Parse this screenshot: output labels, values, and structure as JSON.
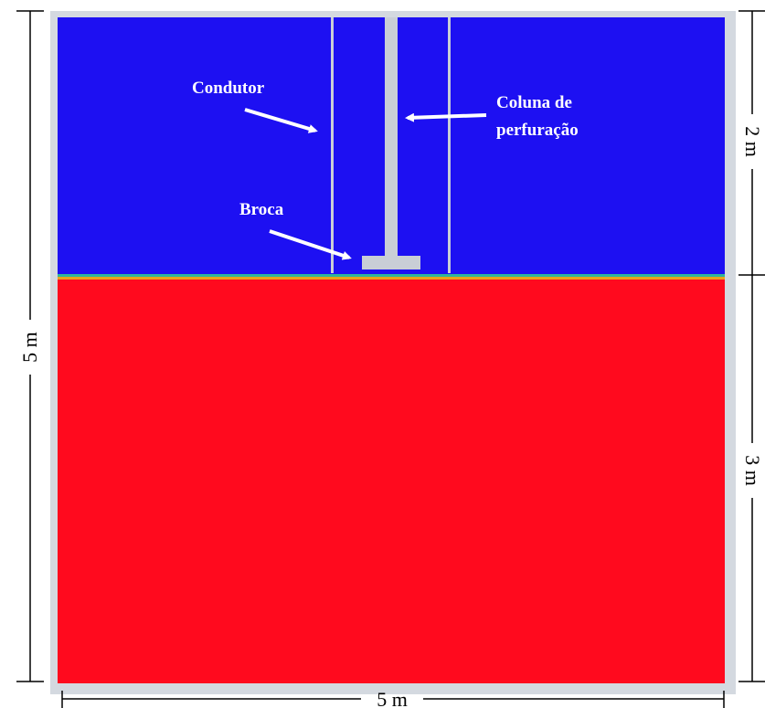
{
  "colors": {
    "water": "#1d10f2",
    "soil": "#ff0a1e",
    "interface": "#2fb59a",
    "steel": "#c9ced6",
    "frame": "#d4d9e0",
    "label": "#ffffff",
    "dimension": "#000000"
  },
  "labels": {
    "condutor": "Condutor",
    "coluna_line1": "Coluna de",
    "coluna_line2": "perfuração",
    "broca": "Broca"
  },
  "dimensions": {
    "total_height": "5 m",
    "top_layer": "2 m",
    "bottom_layer": "3 m",
    "width": "5 m"
  }
}
